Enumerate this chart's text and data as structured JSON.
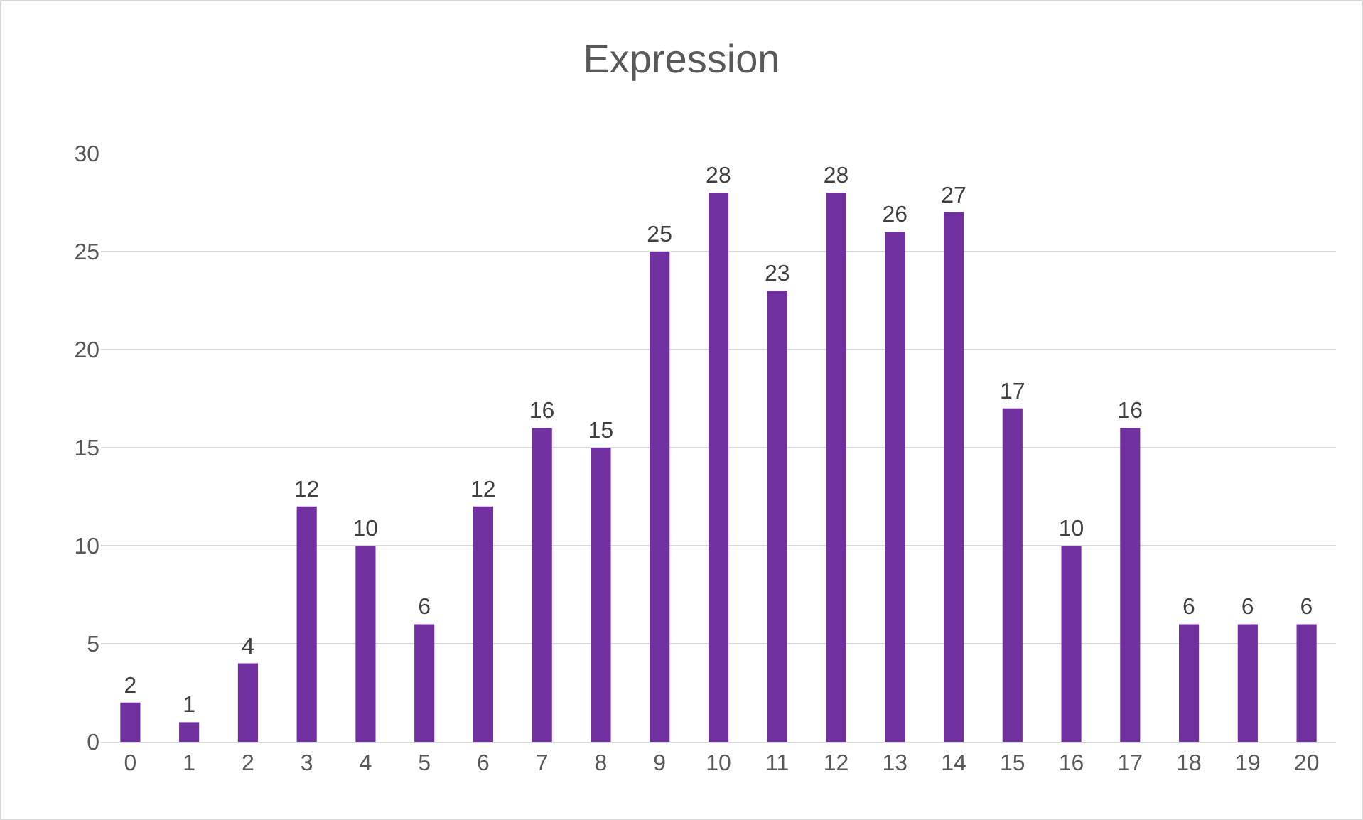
{
  "chart_data": {
    "type": "bar",
    "title": "Expression",
    "categories": [
      "0",
      "1",
      "2",
      "3",
      "4",
      "5",
      "6",
      "7",
      "8",
      "9",
      "10",
      "11",
      "12",
      "13",
      "14",
      "15",
      "16",
      "17",
      "18",
      "19",
      "20"
    ],
    "values": [
      2,
      1,
      4,
      12,
      10,
      6,
      12,
      16,
      15,
      25,
      28,
      23,
      28,
      26,
      27,
      17,
      10,
      16,
      6,
      6,
      6
    ],
    "color": "#7030a0",
    "ylim": [
      0,
      30
    ],
    "yticks": [
      0,
      5,
      10,
      15,
      20,
      25,
      30
    ],
    "grid": "y",
    "data_labels": true
  }
}
